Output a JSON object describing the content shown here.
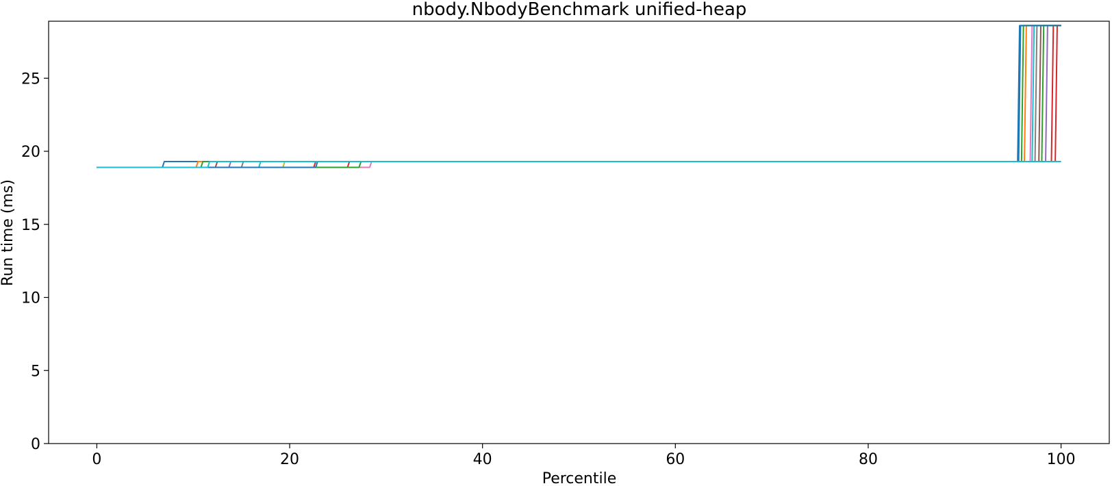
{
  "chart_data": {
    "type": "line",
    "title": "nbody.NbodyBenchmark unified-heap",
    "xlabel": "Percentile",
    "ylabel": "Run time (ms)",
    "xlim": [
      -5,
      105
    ],
    "ylim": [
      0,
      28.9
    ],
    "xticks": [
      0,
      20,
      40,
      60,
      80,
      100
    ],
    "yticks": [
      0,
      5,
      10,
      15,
      20,
      25
    ],
    "grid": false,
    "legend": "none",
    "series": [
      {
        "color": "#1f77b4",
        "x": [
          0,
          6.8,
          7.0,
          95.5,
          95.7,
          100
        ],
        "y": [
          18.9,
          18.9,
          19.3,
          19.3,
          28.6,
          28.6
        ]
      },
      {
        "color": "#ff7f0e",
        "x": [
          0,
          10.3,
          10.5,
          96.2,
          96.4,
          100
        ],
        "y": [
          18.9,
          18.9,
          19.3,
          19.3,
          28.6,
          28.6
        ]
      },
      {
        "color": "#2ca02c",
        "x": [
          0,
          10.8,
          11.0,
          95.9,
          96.1,
          100
        ],
        "y": [
          18.9,
          18.9,
          19.3,
          19.3,
          28.6,
          28.6
        ]
      },
      {
        "color": "#d62728",
        "x": [
          0,
          22.5,
          22.7,
          99.0,
          99.2,
          100
        ],
        "y": [
          18.9,
          18.9,
          19.3,
          19.3,
          28.6,
          28.6
        ]
      },
      {
        "color": "#9467bd",
        "x": [
          0,
          13.7,
          13.9,
          98.4,
          98.6,
          100
        ],
        "y": [
          18.9,
          18.9,
          19.3,
          19.3,
          28.6,
          28.6
        ]
      },
      {
        "color": "#8c564b",
        "x": [
          0,
          12.3,
          12.5,
          97.7,
          97.9,
          100
        ],
        "y": [
          18.9,
          18.9,
          19.3,
          19.3,
          28.6,
          28.6
        ]
      },
      {
        "color": "#e377c2",
        "x": [
          0,
          28.3,
          28.5,
          96.8,
          97.0,
          100
        ],
        "y": [
          18.9,
          18.9,
          19.3,
          19.3,
          28.6,
          28.6
        ]
      },
      {
        "color": "#7f7f7f",
        "x": [
          0,
          15.0,
          15.2,
          97.3,
          97.5,
          100
        ],
        "y": [
          18.9,
          18.9,
          19.3,
          19.3,
          28.6,
          28.6
        ]
      },
      {
        "color": "#bcbd22",
        "x": [
          0,
          19.3,
          19.5,
          100
        ],
        "y": [
          18.9,
          18.9,
          19.3,
          19.3
        ]
      },
      {
        "color": "#17becf",
        "x": [
          0,
          16.8,
          17.0,
          97.0,
          97.2,
          100
        ],
        "y": [
          18.9,
          18.9,
          19.3,
          19.3,
          28.6,
          28.6
        ]
      },
      {
        "color": "#d62728",
        "x": [
          0,
          26.0,
          26.2,
          99.4,
          99.6,
          100
        ],
        "y": [
          18.9,
          18.9,
          19.3,
          19.3,
          28.6,
          28.6
        ]
      },
      {
        "color": "#2ca02c",
        "x": [
          0,
          27.2,
          27.4,
          98.0,
          98.2,
          100
        ],
        "y": [
          18.9,
          18.9,
          19.3,
          19.3,
          28.6,
          28.6
        ]
      },
      {
        "color": "#1f77b4",
        "x": [
          0,
          22.7,
          22.9,
          95.6,
          95.8,
          100
        ],
        "y": [
          18.9,
          18.9,
          19.3,
          19.3,
          28.6,
          28.6
        ]
      },
      {
        "color": "#17becf",
        "x": [
          0,
          11.5,
          11.7,
          99.5,
          99.7,
          100
        ],
        "y": [
          18.9,
          18.9,
          19.3,
          19.3,
          19.3,
          19.3
        ]
      }
    ]
  }
}
